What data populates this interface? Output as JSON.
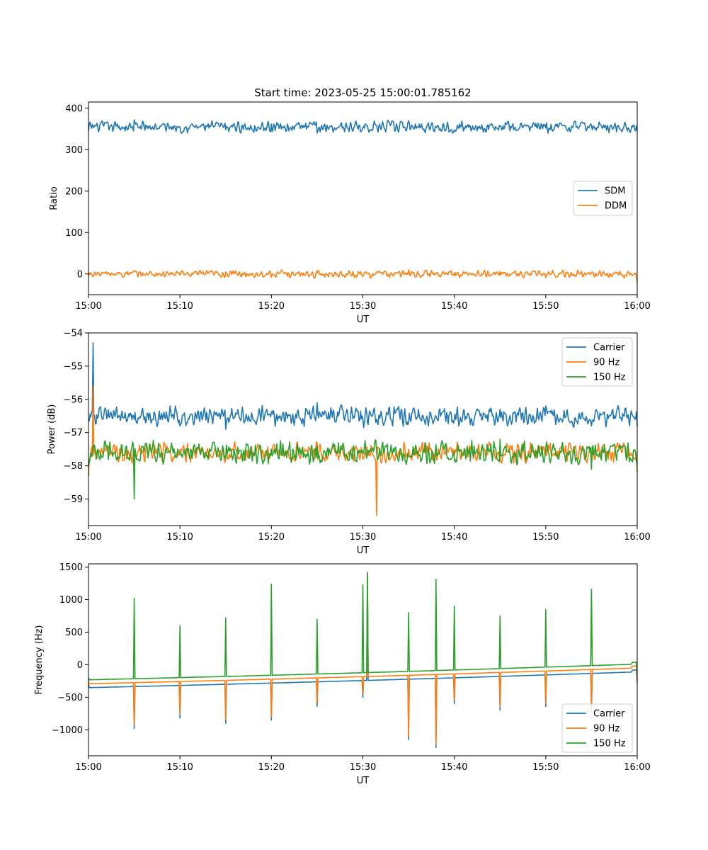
{
  "title": "Start time: 2023-05-25 15:00:01.785162",
  "colors": {
    "blue": "#1f77b4",
    "orange": "#ff7f0e",
    "green": "#2ca02c"
  },
  "chart_data": [
    {
      "type": "line",
      "title": "Start time: 2023-05-25 15:00:01.785162",
      "xlabel": "UT",
      "ylabel": "Ratio",
      "xlim": [
        "15:00",
        "16:00"
      ],
      "ylim": [
        -50,
        415
      ],
      "xticks": [
        "15:00",
        "15:10",
        "15:20",
        "15:30",
        "15:40",
        "15:50",
        "16:00"
      ],
      "yticks": [
        "0",
        "100",
        "200",
        "300",
        "400"
      ],
      "ytick_values": [
        0,
        100,
        200,
        300,
        400
      ],
      "legend": "center-right",
      "grid": false,
      "series": [
        {
          "name": "SDM",
          "color": "#1f77b4",
          "baseline": 355,
          "spread": 16,
          "x": [
            "15:00",
            "15:05",
            "15:10",
            "15:15",
            "15:20",
            "15:25",
            "15:30",
            "15:35",
            "15:40",
            "15:45",
            "15:50",
            "15:55",
            "16:00"
          ],
          "values": [
            345,
            372,
            355,
            348,
            362,
            340,
            352,
            370,
            348,
            357,
            352,
            360,
            344
          ]
        },
        {
          "name": "DDM",
          "color": "#ff7f0e",
          "baseline": 0,
          "spread": 10,
          "x": [
            "15:00",
            "15:05",
            "15:10",
            "15:15",
            "15:20",
            "15:25",
            "15:30",
            "15:35",
            "15:40",
            "15:45",
            "15:50",
            "15:55",
            "16:00"
          ],
          "values": [
            -5,
            8,
            -3,
            5,
            -8,
            2,
            -6,
            10,
            -4,
            6,
            -9,
            3,
            -22
          ]
        }
      ]
    },
    {
      "type": "line",
      "xlabel": "UT",
      "ylabel": "Power (dB)",
      "xlim": [
        "15:00",
        "16:00"
      ],
      "ylim": [
        -59.8,
        -54.0
      ],
      "xticks": [
        "15:00",
        "15:10",
        "15:20",
        "15:30",
        "15:40",
        "15:50",
        "16:00"
      ],
      "yticks": [
        "−59",
        "−58",
        "−57",
        "−56",
        "−55",
        "−54"
      ],
      "ytick_values": [
        -59,
        -58,
        -57,
        -56,
        -55,
        -54
      ],
      "legend": "top-right",
      "grid": false,
      "series": [
        {
          "name": "Carrier",
          "color": "#1f77b4",
          "baseline": -56.5,
          "spread": 0.35,
          "x": [
            "15:00",
            "15:00.5",
            "15:05",
            "15:10",
            "15:15",
            "15:20",
            "15:25",
            "15:30",
            "15:35",
            "15:40",
            "15:45",
            "15:50",
            "15:55",
            "16:00"
          ],
          "values": [
            -56.6,
            -54.3,
            -56.6,
            -56.8,
            -56.9,
            -56.4,
            -56.1,
            -56.6,
            -56.7,
            -56.6,
            -56.3,
            -56.2,
            -56.8,
            -56.8
          ]
        },
        {
          "name": "90 Hz",
          "color": "#ff7f0e",
          "baseline": -57.6,
          "spread": 0.35,
          "x": [
            "15:00",
            "15:00.5",
            "15:05",
            "15:10",
            "15:15",
            "15:20",
            "15:25",
            "15:30",
            "15:31.5",
            "15:35",
            "15:40",
            "15:45",
            "15:50",
            "15:55",
            "16:00"
          ],
          "values": [
            -58.3,
            -55.6,
            -57.7,
            -57.5,
            -57.7,
            -57.5,
            -57.3,
            -57.8,
            -59.5,
            -57.5,
            -57.7,
            -57.4,
            -57.5,
            -57.9,
            -58.2
          ]
        },
        {
          "name": "150 Hz",
          "color": "#2ca02c",
          "baseline": -57.6,
          "spread": 0.4,
          "x": [
            "15:00",
            "15:05",
            "15:10",
            "15:15",
            "15:20",
            "15:25",
            "15:30",
            "15:35",
            "15:40",
            "15:45",
            "15:50",
            "15:55",
            "16:00"
          ],
          "values": [
            -58.0,
            -59.0,
            -57.6,
            -57.8,
            -57.5,
            -57.4,
            -57.6,
            -57.7,
            -57.8,
            -57.2,
            -57.5,
            -58.1,
            -58.0
          ]
        }
      ]
    },
    {
      "type": "line",
      "xlabel": "UT",
      "ylabel": "Frequency (Hz)",
      "xlim": [
        "15:00",
        "16:00"
      ],
      "ylim": [
        -1400,
        1550
      ],
      "xticks": [
        "15:00",
        "15:10",
        "15:20",
        "15:30",
        "15:40",
        "15:50",
        "16:00"
      ],
      "yticks": [
        "−1000",
        "−500",
        "0",
        "500",
        "1000",
        "1500"
      ],
      "ytick_values": [
        -1000,
        -500,
        0,
        500,
        1000,
        1500
      ],
      "legend": "bottom-right",
      "grid": false,
      "series": [
        {
          "name": "Carrier",
          "color": "#1f77b4",
          "baseline": -60,
          "spread": 380,
          "x": [
            "15:00",
            "15:05",
            "15:10",
            "15:15",
            "15:20",
            "15:25",
            "15:30",
            "15:30.5",
            "15:35",
            "15:38",
            "15:40",
            "15:45",
            "15:50",
            "15:55",
            "16:00"
          ],
          "values": [
            -300,
            -980,
            -820,
            -900,
            -850,
            -640,
            -500,
            1400,
            -1150,
            -1270,
            -600,
            -700,
            -640,
            -700,
            -280
          ]
        },
        {
          "name": "90 Hz",
          "color": "#ff7f0e",
          "baseline": 0,
          "spread": 380,
          "x": [
            "15:00",
            "15:05",
            "15:10",
            "15:15",
            "15:20",
            "15:25",
            "15:30",
            "15:30.5",
            "15:35",
            "15:38",
            "15:40",
            "15:45",
            "15:50",
            "15:55",
            "16:00"
          ],
          "values": [
            -250,
            -920,
            -760,
            -840,
            -800,
            -580,
            -450,
            1410,
            -1100,
            -1220,
            -550,
            -650,
            -600,
            -650,
            -230
          ]
        },
        {
          "name": "150 Hz",
          "color": "#2ca02c",
          "baseline": 60,
          "spread": 380,
          "x": [
            "15:00",
            "15:05",
            "15:10",
            "15:15",
            "15:20",
            "15:25",
            "15:30",
            "15:30.5",
            "15:35",
            "15:38",
            "15:40",
            "15:45",
            "15:50",
            "15:55",
            "16:00"
          ],
          "values": [
            -200,
            1020,
            600,
            720,
            1240,
            700,
            1230,
            1420,
            800,
            1310,
            900,
            750,
            850,
            1160,
            -150
          ]
        }
      ]
    }
  ]
}
